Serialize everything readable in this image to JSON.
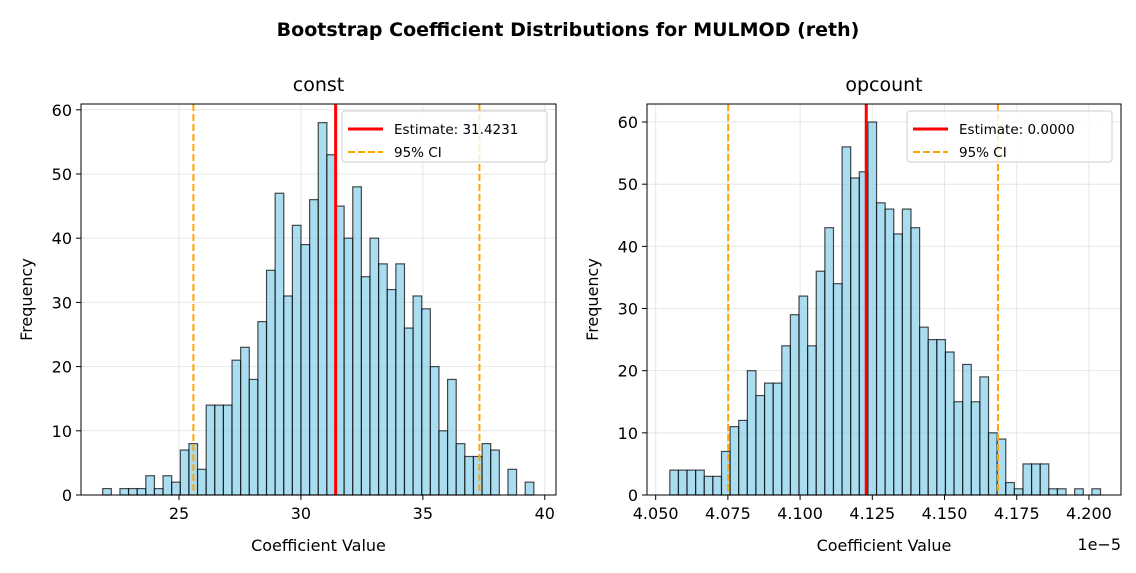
{
  "title": "Bootstrap Coefficient Distributions for MULMOD (reth)",
  "colors": {
    "bar_fill": "#87ceeb",
    "bar_edge": "#000000",
    "estimate": "#ff0000",
    "ci": "#ffa500",
    "grid": "#b0b0b0"
  },
  "chart_data": [
    {
      "type": "bar",
      "title": "const",
      "xlabel": "Coefficient Value",
      "ylabel": "Frequency",
      "x_offset_label": "",
      "xlim": [
        20.98,
        40.46
      ],
      "ylim": [
        0,
        60.9
      ],
      "xticks": [
        25,
        30,
        35,
        40
      ],
      "xtick_labels": [
        "25",
        "30",
        "35",
        "40"
      ],
      "yticks": [
        0,
        10,
        20,
        30,
        40,
        50,
        60
      ],
      "ytick_labels": [
        "0",
        "10",
        "20",
        "30",
        "40",
        "50",
        "60"
      ],
      "grid": true,
      "bin_range": [
        21.87,
        39.55
      ],
      "counts": [
        1,
        0,
        1,
        1,
        1,
        3,
        1,
        3,
        2,
        7,
        8,
        4,
        14,
        14,
        14,
        21,
        23,
        18,
        27,
        35,
        47,
        31,
        42,
        39,
        46,
        58,
        53,
        45,
        40,
        48,
        34,
        40,
        36,
        32,
        36,
        26,
        31,
        29,
        20,
        10,
        18,
        8,
        6,
        6,
        8,
        7,
        0,
        4,
        0,
        2
      ],
      "estimate": 31.4231,
      "ci": [
        25.59,
        37.32
      ],
      "legend": {
        "position": "top-right",
        "entries": [
          "Estimate: 31.4231",
          "95% CI"
        ]
      }
    },
    {
      "type": "bar",
      "title": "opcount",
      "xlabel": "Coefficient Value",
      "ylabel": "Frequency",
      "x_offset_label": "1e−5",
      "xlim": [
        4.047,
        4.2111
      ],
      "ylim": [
        0,
        62.9
      ],
      "xticks": [
        4.05,
        4.075,
        4.1,
        4.125,
        4.15,
        4.175,
        4.2
      ],
      "xtick_labels": [
        "4.050",
        "4.075",
        "4.100",
        "4.125",
        "4.150",
        "4.175",
        "4.200"
      ],
      "yticks": [
        0,
        10,
        20,
        30,
        40,
        50,
        60
      ],
      "ytick_labels": [
        "0",
        "10",
        "20",
        "30",
        "40",
        "50",
        "60"
      ],
      "grid": true,
      "bin_range": [
        4.0549,
        4.204
      ],
      "counts": [
        4,
        4,
        4,
        4,
        3,
        3,
        7,
        11,
        12,
        20,
        16,
        18,
        18,
        24,
        29,
        32,
        24,
        36,
        43,
        34,
        56,
        51,
        52,
        60,
        47,
        46,
        42,
        46,
        43,
        27,
        25,
        25,
        23,
        15,
        21,
        15,
        19,
        10,
        9,
        2,
        1,
        5,
        5,
        5,
        1,
        1,
        0,
        1,
        0,
        1
      ],
      "estimate": 4.1229,
      "ci": [
        4.0751,
        4.1685
      ],
      "legend": {
        "position": "top-right",
        "entries": [
          "Estimate: 0.0000",
          "95% CI"
        ]
      }
    }
  ]
}
